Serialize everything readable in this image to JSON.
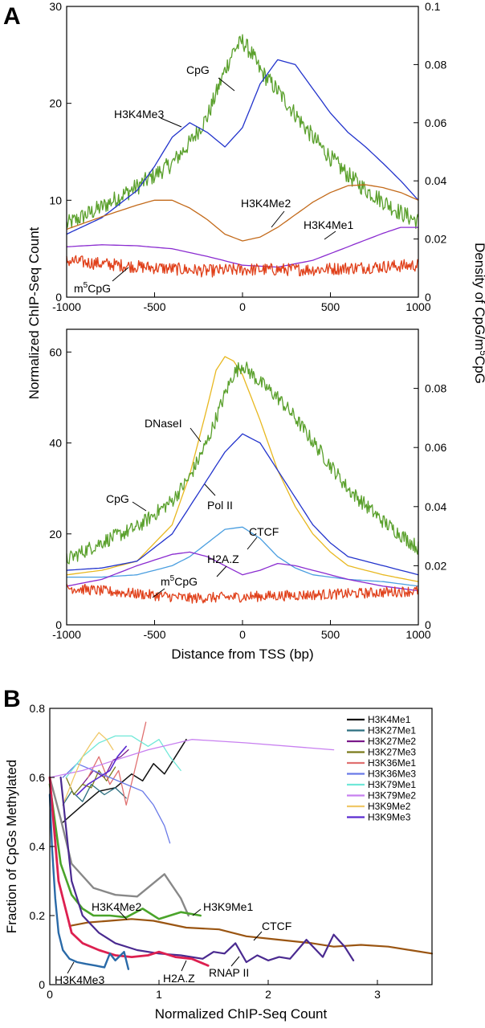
{
  "chart_data": [
    {
      "type": "line",
      "panel_label": "A",
      "xlim": [
        -1000,
        1000
      ],
      "ylim": [
        0,
        30
      ],
      "y2lim": [
        0,
        0.1
      ],
      "xticks": [
        "-1000",
        "-500",
        "0",
        "500",
        "1000"
      ],
      "yticks": [
        "0",
        "10",
        "20",
        "30"
      ],
      "y2ticks": [
        "0",
        "0.02",
        "0.04",
        "0.06",
        "0.08",
        "0.1"
      ],
      "series": [
        {
          "name": "CpG",
          "axis": "right",
          "color": "#5aa02c",
          "noise": 0.003,
          "x": [
            -1000,
            -800,
            -600,
            -400,
            -300,
            -200,
            -150,
            -100,
            -50,
            0,
            50,
            100,
            200,
            300,
            400,
            500,
            600,
            700,
            800,
            900,
            1000
          ],
          "y": [
            0.025,
            0.031,
            0.038,
            0.046,
            0.053,
            0.062,
            0.07,
            0.078,
            0.085,
            0.088,
            0.084,
            0.078,
            0.071,
            0.063,
            0.055,
            0.048,
            0.042,
            0.037,
            0.033,
            0.029,
            0.026
          ]
        },
        {
          "name": "H3K4Me3",
          "axis": "left",
          "color": "#2233cc",
          "noise": 0,
          "x": [
            -1000,
            -800,
            -600,
            -500,
            -400,
            -300,
            -200,
            -100,
            0,
            100,
            200,
            300,
            400,
            500,
            600,
            700,
            800,
            900,
            1000
          ],
          "y": [
            6.5,
            8.2,
            11,
            13.5,
            16.5,
            18,
            17,
            15.5,
            17.5,
            22,
            24.5,
            24,
            21.5,
            19,
            17,
            15.5,
            13.8,
            12,
            10
          ]
        },
        {
          "name": "H3K4Me2",
          "axis": "left",
          "color": "#c36a1a",
          "noise": 0,
          "x": [
            -1000,
            -800,
            -600,
            -500,
            -400,
            -300,
            -200,
            -100,
            0,
            100,
            200,
            300,
            400,
            500,
            600,
            700,
            800,
            900,
            1000
          ],
          "y": [
            7,
            8.3,
            9.5,
            10,
            10,
            9.2,
            8,
            6.5,
            5.8,
            6.2,
            7.2,
            8.5,
            9.8,
            10.8,
            11.5,
            11.6,
            11.3,
            10.8,
            10
          ]
        },
        {
          "name": "H3K4Me1",
          "axis": "left",
          "color": "#8a2bd0",
          "noise": 0,
          "x": [
            -1000,
            -800,
            -600,
            -400,
            -200,
            0,
            200,
            400,
            600,
            800,
            900,
            1000
          ],
          "y": [
            5.2,
            5.4,
            5.3,
            5.0,
            4.2,
            3.3,
            3.1,
            3.8,
            5.2,
            6.6,
            7.2,
            7.2
          ]
        },
        {
          "name": "m5CpG",
          "axis": "right",
          "color": "#e0401a",
          "noise": 0.0022,
          "x": [
            -1000,
            -600,
            -200,
            0,
            400,
            800,
            1000
          ],
          "y": [
            0.0125,
            0.0105,
            0.009,
            0.0095,
            0.0095,
            0.0105,
            0.011
          ]
        }
      ],
      "annotations": [
        {
          "text": "CpG",
          "sup": ""
        },
        {
          "text": "H3K4Me3",
          "sup": ""
        },
        {
          "text": "H3K4Me2",
          "sup": ""
        },
        {
          "text": "H3K4Me1",
          "sup": ""
        },
        {
          "text": "m",
          "sup": "5",
          "tail": "CpG"
        }
      ]
    },
    {
      "type": "line",
      "xlim": [
        -1000,
        1000
      ],
      "ylim": [
        0,
        65
      ],
      "y2lim": [
        0,
        0.1
      ],
      "xticks": [
        "-1000",
        "-500",
        "0",
        "500",
        "1000"
      ],
      "yticks": [
        "0",
        "20",
        "40",
        "60"
      ],
      "y2ticks": [
        "0",
        "0.02",
        "0.04",
        "0.06",
        "0.08"
      ],
      "xlabel": "Distance from TSS (bp)",
      "series": [
        {
          "name": "DNaseI",
          "axis": "left",
          "color": "#e8b820",
          "noise": 0,
          "x": [
            -1000,
            -800,
            -600,
            -400,
            -300,
            -200,
            -150,
            -100,
            -50,
            0,
            50,
            100,
            200,
            300,
            400,
            500,
            600,
            800,
            1000
          ],
          "y": [
            11,
            12,
            14,
            22,
            33,
            48,
            56,
            59,
            58,
            55,
            50,
            45,
            34,
            26,
            20,
            16,
            13,
            11,
            9.5
          ]
        },
        {
          "name": "CpG",
          "axis": "right",
          "color": "#5aa02c",
          "noise": 0.0025,
          "x": [
            -1000,
            -800,
            -600,
            -400,
            -300,
            -200,
            -100,
            -50,
            0,
            50,
            100,
            200,
            300,
            400,
            500,
            600,
            800,
            1000
          ],
          "y": [
            0.022,
            0.028,
            0.033,
            0.042,
            0.05,
            0.062,
            0.078,
            0.085,
            0.088,
            0.085,
            0.082,
            0.077,
            0.07,
            0.062,
            0.054,
            0.046,
            0.035,
            0.026
          ]
        },
        {
          "name": "Pol II",
          "axis": "left",
          "color": "#2233cc",
          "noise": 0,
          "x": [
            -1000,
            -800,
            -600,
            -400,
            -300,
            -200,
            -100,
            0,
            100,
            200,
            300,
            400,
            500,
            600,
            800,
            1000
          ],
          "y": [
            12,
            12.5,
            14,
            20,
            26,
            32,
            38,
            42,
            40,
            34,
            28,
            22,
            18,
            15,
            13,
            11
          ]
        },
        {
          "name": "CTCF",
          "axis": "left",
          "color": "#4a9ee0",
          "noise": 0,
          "x": [
            -1000,
            -800,
            -600,
            -400,
            -300,
            -200,
            -100,
            0,
            100,
            200,
            300,
            400,
            600,
            800,
            1000
          ],
          "y": [
            10.5,
            10.5,
            11,
            13,
            15,
            18,
            21,
            21.5,
            19,
            15,
            12.5,
            11,
            10,
            9.5,
            8.5
          ]
        },
        {
          "name": "H2A.Z",
          "axis": "left",
          "color": "#8a2bd0",
          "noise": 0,
          "x": [
            -1000,
            -800,
            -600,
            -400,
            -300,
            -200,
            -100,
            0,
            100,
            200,
            300,
            400,
            600,
            800,
            1000
          ],
          "y": [
            8.5,
            10,
            13,
            15.5,
            16,
            15,
            13,
            11,
            12,
            13.5,
            13,
            12,
            10,
            8.5,
            7.5
          ]
        },
        {
          "name": "m5CpG",
          "axis": "right",
          "color": "#e0401a",
          "noise": 0.0018,
          "x": [
            -1000,
            -600,
            -300,
            0,
            300,
            600,
            1000
          ],
          "y": [
            0.0125,
            0.0105,
            0.009,
            0.0095,
            0.01,
            0.0105,
            0.0115
          ]
        }
      ],
      "annotations": [
        {
          "text": "DNaseI",
          "sup": ""
        },
        {
          "text": "CpG",
          "sup": ""
        },
        {
          "text": "Pol II",
          "sup": ""
        },
        {
          "text": "CTCF",
          "sup": ""
        },
        {
          "text": "H2A.Z",
          "sup": ""
        },
        {
          "text": "m",
          "sup": "5",
          "tail": "CpG"
        }
      ]
    },
    {
      "type": "line",
      "panel_label": "B",
      "xlim": [
        0,
        3.5
      ],
      "ylim": [
        0,
        0.8
      ],
      "xticks": [
        "0",
        "1",
        "2",
        "3"
      ],
      "yticks": [
        "0",
        "0.2",
        "0.4",
        "0.6",
        "0.8"
      ],
      "xlabel": "Normalized ChIP-Seq Count",
      "ylabel": "Fraction of CpGs Methylated",
      "legend_position": "top-right",
      "series": [
        {
          "name": "H3K4Me1",
          "color": "#111111",
          "width": 1.5,
          "legend": true,
          "x": [
            0.12,
            0.3,
            0.45,
            0.6,
            0.75,
            0.85,
            0.95,
            1.05,
            1.15,
            1.25
          ],
          "y": [
            0.47,
            0.52,
            0.56,
            0.57,
            0.61,
            0.59,
            0.64,
            0.61,
            0.66,
            0.71
          ]
        },
        {
          "name": "H3K27Me1",
          "color": "#2c6f80",
          "width": 1.3,
          "legend": true,
          "x": [
            0.12,
            0.2,
            0.3,
            0.38,
            0.5,
            0.6,
            0.7
          ],
          "y": [
            0.52,
            0.56,
            0.53,
            0.58,
            0.55,
            0.57,
            0.54
          ]
        },
        {
          "name": "H3K27Me2",
          "color": "#7a1a8a",
          "width": 1.3,
          "legend": true,
          "x": [
            0.3,
            0.4,
            0.5,
            0.58,
            0.65,
            0.72
          ],
          "y": [
            0.58,
            0.62,
            0.6,
            0.65,
            0.66,
            0.68
          ]
        },
        {
          "name": "H3K27Me3",
          "color": "#7a7a1a",
          "width": 1.3,
          "legend": true,
          "x": [
            0.15,
            0.22,
            0.3,
            0.38,
            0.45,
            0.52,
            0.6
          ],
          "y": [
            0.6,
            0.55,
            0.58,
            0.57,
            0.62,
            0.59,
            0.63
          ]
        },
        {
          "name": "H3K36Me1",
          "color": "#e07070",
          "width": 1.3,
          "legend": true,
          "x": [
            0.35,
            0.45,
            0.55,
            0.63,
            0.7,
            0.8,
            0.88
          ],
          "y": [
            0.6,
            0.66,
            0.58,
            0.62,
            0.52,
            0.65,
            0.76
          ]
        },
        {
          "name": "H3K36Me3",
          "color": "#6a7ae8",
          "width": 1.3,
          "legend": true,
          "x": [
            0.12,
            0.25,
            0.4,
            0.55,
            0.7,
            0.85,
            0.95,
            1.05,
            1.1
          ],
          "y": [
            0.6,
            0.64,
            0.62,
            0.6,
            0.58,
            0.56,
            0.52,
            0.46,
            0.41
          ]
        },
        {
          "name": "H3K79Me1",
          "color": "#70e8d8",
          "width": 1.3,
          "legend": true,
          "x": [
            0.15,
            0.3,
            0.45,
            0.6,
            0.75,
            0.9,
            1.0,
            1.1,
            1.2
          ],
          "y": [
            0.6,
            0.66,
            0.7,
            0.72,
            0.72,
            0.69,
            0.71,
            0.66,
            0.62
          ]
        },
        {
          "name": "H3K79Me2",
          "color": "#c880f0",
          "width": 1.3,
          "legend": true,
          "x": [
            0.0,
            0.3,
            0.6,
            0.9,
            1.3,
            1.8,
            2.6
          ],
          "y": [
            0.6,
            0.62,
            0.65,
            0.68,
            0.71,
            0.7,
            0.68
          ]
        },
        {
          "name": "H3K9Me2",
          "color": "#f0c868",
          "width": 1.3,
          "legend": true,
          "x": [
            0.12,
            0.22,
            0.3,
            0.38,
            0.45,
            0.52,
            0.58
          ],
          "y": [
            0.52,
            0.6,
            0.66,
            0.7,
            0.73,
            0.71,
            0.68
          ]
        },
        {
          "name": "H3K9Me3",
          "color": "#5a2ad0",
          "width": 1.6,
          "legend": true,
          "x": [
            0.25,
            0.35,
            0.45,
            0.55,
            0.62,
            0.7
          ],
          "y": [
            0.55,
            0.58,
            0.6,
            0.62,
            0.66,
            0.69
          ]
        },
        {
          "name": "H3K9Me1",
          "color": "#888888",
          "width": 2.4,
          "legend": false,
          "x": [
            0,
            0.1,
            0.2,
            0.4,
            0.6,
            0.8,
            1.05,
            1.2,
            1.27
          ],
          "y": [
            0.6,
            0.48,
            0.35,
            0.28,
            0.26,
            0.255,
            0.32,
            0.25,
            0.2
          ]
        },
        {
          "name": "H3K4Me2",
          "color": "#4aa42a",
          "width": 2.6,
          "legend": false,
          "x": [
            0,
            0.1,
            0.2,
            0.3,
            0.4,
            0.55,
            0.7,
            0.85,
            1.0,
            1.2,
            1.38
          ],
          "y": [
            0.58,
            0.35,
            0.26,
            0.22,
            0.2,
            0.2,
            0.195,
            0.22,
            0.19,
            0.21,
            0.2
          ]
        },
        {
          "name": "CTCF",
          "color": "#9a5512",
          "width": 2.2,
          "legend": false,
          "x": [
            0.18,
            0.35,
            0.55,
            0.75,
            0.95,
            1.25,
            1.55,
            1.8,
            2.1,
            2.4,
            2.6,
            2.85,
            3.1,
            3.3,
            3.5
          ],
          "y": [
            0.17,
            0.18,
            0.185,
            0.19,
            0.185,
            0.165,
            0.16,
            0.14,
            0.13,
            0.12,
            0.11,
            0.115,
            0.11,
            0.1,
            0.09
          ]
        },
        {
          "name": "RNAP II",
          "color": "#4a2a90",
          "width": 2.2,
          "legend": false,
          "x": [
            0.1,
            0.2,
            0.3,
            0.45,
            0.6,
            0.8,
            1.0,
            1.2,
            1.4,
            1.5,
            1.6,
            1.7,
            1.8,
            1.9,
            2.0,
            2.1,
            2.2,
            2.35,
            2.5,
            2.6,
            2.7,
            2.78
          ],
          "y": [
            0.6,
            0.3,
            0.2,
            0.15,
            0.12,
            0.1,
            0.09,
            0.085,
            0.075,
            0.095,
            0.09,
            0.12,
            0.065,
            0.085,
            0.07,
            0.08,
            0.075,
            0.13,
            0.08,
            0.145,
            0.11,
            0.07
          ]
        },
        {
          "name": "H2A.Z",
          "color": "#dd2050",
          "width": 2.8,
          "legend": false,
          "x": [
            0,
            0.08,
            0.2,
            0.3,
            0.45,
            0.6,
            0.75,
            0.9,
            1.0,
            1.15,
            1.3,
            1.45
          ],
          "y": [
            0.6,
            0.3,
            0.15,
            0.12,
            0.1,
            0.085,
            0.08,
            0.085,
            0.095,
            0.08,
            0.075,
            0.055
          ]
        },
        {
          "name": "H3K4Me3",
          "color": "#2a6aa8",
          "width": 2.4,
          "legend": false,
          "x": [
            0,
            0.02,
            0.05,
            0.08,
            0.12,
            0.18,
            0.25,
            0.33,
            0.42,
            0.5,
            0.55,
            0.6,
            0.68,
            0.72
          ],
          "y": [
            0.55,
            0.4,
            0.25,
            0.15,
            0.1,
            0.075,
            0.065,
            0.06,
            0.055,
            0.05,
            0.09,
            0.07,
            0.095,
            0.045
          ]
        }
      ],
      "annotations": [
        {
          "text": "H3K4Me2"
        },
        {
          "text": "H3K9Me1"
        },
        {
          "text": "CTCF"
        },
        {
          "text": "RNAP II"
        },
        {
          "text": "H2A.Z"
        },
        {
          "text": "H3K4Me3"
        }
      ]
    }
  ],
  "shared_left_ylabel": "Normalized ChIP-Seq Count",
  "shared_right_ylabel_main": "Density of CpG/m",
  "shared_right_ylabel_sup": "5",
  "shared_right_ylabel_tail": "CpG"
}
